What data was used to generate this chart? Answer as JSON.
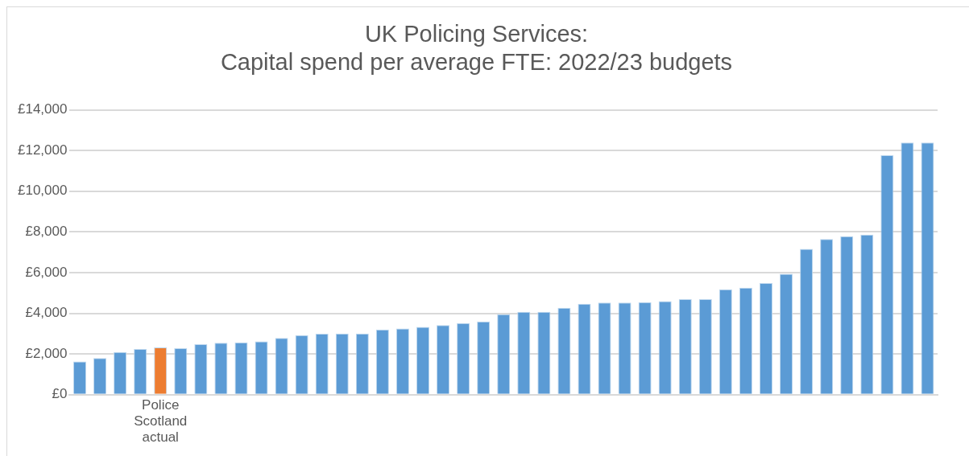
{
  "chart_data": {
    "type": "bar",
    "title": "UK Policing Services: Capital spend per average FTE: 2022/23 budgets",
    "categories": [
      null,
      null,
      null,
      null,
      "Police Scotland actual",
      null,
      null,
      null,
      null,
      null,
      null,
      null,
      null,
      null,
      null,
      null,
      null,
      null,
      null,
      null,
      null,
      null,
      null,
      null,
      null,
      null,
      null,
      null,
      null,
      null,
      null,
      null,
      null,
      null,
      null,
      null,
      null,
      null,
      null,
      null,
      null,
      null,
      null
    ],
    "values": [
      1630,
      1800,
      2100,
      2250,
      2320,
      2280,
      2480,
      2550,
      2570,
      2620,
      2790,
      2930,
      3000,
      3010,
      3010,
      3200,
      3250,
      3330,
      3420,
      3520,
      3600,
      3950,
      4070,
      4070,
      4270,
      4470,
      4530,
      4530,
      4550,
      4600,
      4700,
      4700,
      5180,
      5260,
      5490,
      5940,
      7170,
      7650,
      7790,
      7870,
      11770,
      12390,
      12390
    ],
    "colors": [
      "#5b9bd5",
      "#5b9bd5",
      "#5b9bd5",
      "#5b9bd5",
      "#ed7d31",
      "#5b9bd5",
      "#5b9bd5",
      "#5b9bd5",
      "#5b9bd5",
      "#5b9bd5",
      "#5b9bd5",
      "#5b9bd5",
      "#5b9bd5",
      "#5b9bd5",
      "#5b9bd5",
      "#5b9bd5",
      "#5b9bd5",
      "#5b9bd5",
      "#5b9bd5",
      "#5b9bd5",
      "#5b9bd5",
      "#5b9bd5",
      "#5b9bd5",
      "#5b9bd5",
      "#5b9bd5",
      "#5b9bd5",
      "#5b9bd5",
      "#5b9bd5",
      "#5b9bd5",
      "#5b9bd5",
      "#5b9bd5",
      "#5b9bd5",
      "#5b9bd5",
      "#5b9bd5",
      "#5b9bd5",
      "#5b9bd5",
      "#5b9bd5",
      "#5b9bd5",
      "#5b9bd5",
      "#5b9bd5",
      "#5b9bd5",
      "#5b9bd5",
      "#5b9bd5"
    ],
    "ylim": [
      0,
      14000
    ],
    "yticks": [
      {
        "value": 0,
        "label": "£0"
      },
      {
        "value": 2000,
        "label": "£2,000"
      },
      {
        "value": 4000,
        "label": "£4,000"
      },
      {
        "value": 6000,
        "label": "£6,000"
      },
      {
        "value": 8000,
        "label": "£8,000"
      },
      {
        "value": 10000,
        "label": "£10,000"
      },
      {
        "value": 12000,
        "label": "£12,000"
      },
      {
        "value": 14000,
        "label": "£14,000"
      }
    ],
    "grid": "y",
    "legend": false
  }
}
